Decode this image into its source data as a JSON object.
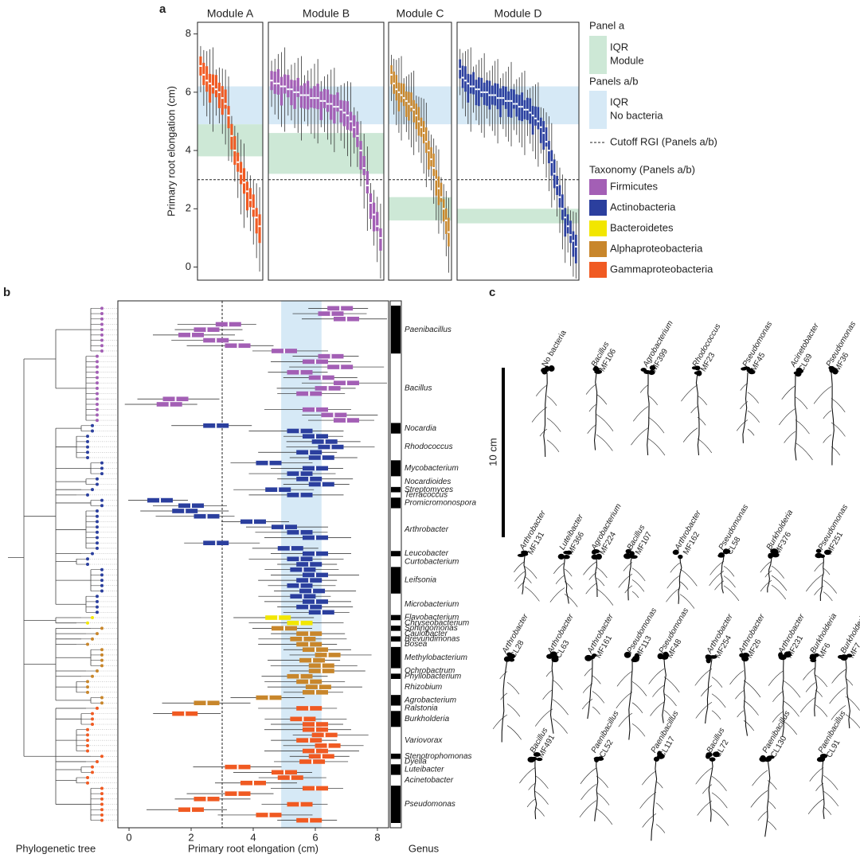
{
  "panel_a": {
    "label": "a",
    "y_label": "Primary root elongation (cm)",
    "ylim": [
      -0.45,
      8.4
    ],
    "yticks": [
      0,
      2,
      4,
      6,
      8
    ],
    "no_bacteria_iqr": [
      4.9,
      6.2
    ],
    "cutoff": 3.0,
    "modules": [
      {
        "name": "Module A",
        "color": "#f05a22",
        "iqr": [
          3.8,
          4.9
        ],
        "values": [
          6.9,
          6.6,
          6.4,
          6.3,
          6.2,
          6.1,
          6.0,
          5.8,
          5.6,
          5.2,
          4.5,
          4.0,
          3.6,
          3.2,
          2.9,
          2.6,
          2.3,
          2.0,
          1.7,
          1.4
        ]
      },
      {
        "name": "Module B",
        "color": "#a35fb5",
        "iqr": [
          3.2,
          4.6
        ],
        "values": [
          6.4,
          6.3,
          6.3,
          6.2,
          6.2,
          6.1,
          6.1,
          6.0,
          6.0,
          5.9,
          5.9,
          5.9,
          5.8,
          5.8,
          5.8,
          5.7,
          5.7,
          5.6,
          5.6,
          5.5,
          5.5,
          5.4,
          5.3,
          5.2,
          5.0,
          4.8,
          4.5,
          4.0,
          3.4,
          2.8,
          2.2,
          1.8,
          1.4,
          1.0
        ]
      },
      {
        "name": "Module C",
        "color": "#c8862b",
        "iqr": [
          1.6,
          2.4
        ],
        "values": [
          6.6,
          6.3,
          6.1,
          6.0,
          5.9,
          5.8,
          5.7,
          5.6,
          5.5,
          5.4,
          5.2,
          5.0,
          4.8,
          4.6,
          4.3,
          4.0,
          3.7,
          3.4,
          3.0,
          2.7,
          2.4,
          2.0,
          1.6,
          1.2
        ]
      },
      {
        "name": "Module D",
        "color": "#2b3f9e",
        "iqr": [
          1.5,
          2.0
        ],
        "values": [
          6.8,
          6.5,
          6.4,
          6.3,
          6.2,
          6.2,
          6.1,
          6.1,
          6.0,
          6.0,
          6.0,
          5.9,
          5.9,
          5.9,
          5.8,
          5.8,
          5.8,
          5.7,
          5.7,
          5.7,
          5.6,
          5.6,
          5.5,
          5.5,
          5.4,
          5.4,
          5.3,
          5.2,
          5.1,
          5.0,
          4.8,
          4.6,
          4.3,
          4.0,
          3.6,
          3.2,
          2.8,
          2.4,
          2.0,
          1.7,
          1.4,
          1.1,
          0.9,
          0.7
        ]
      }
    ],
    "legend": {
      "panel_a_title": "Panel a",
      "module_iqr": [
        "IQR",
        "Module"
      ],
      "module_color": "#cde8d6",
      "panels_ab_title": "Panels a/b",
      "no_bacteria_iqr": [
        "IQR",
        "No bacteria"
      ],
      "no_bacteria_color": "#d6e9f6",
      "cutoff": "Cutoff RGI (Panels a/b)",
      "taxonomy_title": "Taxonomy (Panels a/b)",
      "taxonomy": [
        {
          "name": "Firmicutes",
          "color": "#a35fb5"
        },
        {
          "name": "Actinobacteria",
          "color": "#2b3f9e"
        },
        {
          "name": "Bacteroidetes",
          "color": "#f2e600"
        },
        {
          "name": "Alphaproteobacteria",
          "color": "#c8862b"
        },
        {
          "name": "Gammaproteobacteria",
          "color": "#f05a22"
        }
      ]
    }
  },
  "panel_b": {
    "label": "b",
    "tree_label": "Phylogenetic tree",
    "x_label": "Primary root elongation (cm)",
    "genus_label": "Genus",
    "xlim": [
      -0.36,
      8.36
    ],
    "xticks": [
      0,
      2,
      4,
      6,
      8
    ],
    "no_bacteria_iqr": [
      4.9,
      6.2
    ],
    "cutoff": 3.0,
    "genera": [
      {
        "name": "Paenibacillus",
        "color": "#a35fb5",
        "values": [
          6.8,
          6.5,
          7.0,
          3.2,
          2.5,
          2.0,
          2.8,
          3.5,
          5.0
        ]
      },
      {
        "name": "Bacillus",
        "color": "#a35fb5",
        "values": [
          6.5,
          6.0,
          6.8,
          5.5,
          6.2,
          7.0,
          6.4,
          5.8,
          1.5,
          1.3,
          6.0,
          6.6,
          7.0
        ]
      },
      {
        "name": "Nocardia",
        "color": "#2b3f9e",
        "values": [
          2.8,
          5.5
        ]
      },
      {
        "name": "Rhodococcus",
        "color": "#2b3f9e",
        "values": [
          6.0,
          6.3,
          6.5,
          5.8,
          6.2
        ]
      },
      {
        "name": "Mycobacterium",
        "color": "#2b3f9e",
        "values": [
          4.5,
          6.0,
          5.5
        ]
      },
      {
        "name": "Nocardioides",
        "color": "#2b3f9e",
        "values": [
          5.8,
          6.2
        ]
      },
      {
        "name": "Streptomyces",
        "color": "#2b3f9e",
        "values": [
          4.8
        ]
      },
      {
        "name": "Terracoccus",
        "color": "#2b3f9e",
        "values": [
          5.5
        ]
      },
      {
        "name": "Promicromonospora",
        "color": "#2b3f9e",
        "values": [
          1.0,
          2.0
        ]
      },
      {
        "name": "Arthrobacter",
        "color": "#2b3f9e",
        "values": [
          1.8,
          2.5,
          4.0,
          5.0,
          5.5,
          6.0,
          2.8,
          5.2
        ]
      },
      {
        "name": "Leucobacter",
        "color": "#2b3f9e",
        "values": [
          6.0
        ]
      },
      {
        "name": "Curtobacterium",
        "color": "#2b3f9e",
        "values": [
          5.5,
          5.8
        ]
      },
      {
        "name": "Leifsonia",
        "color": "#2b3f9e",
        "values": [
          5.6,
          6.0,
          5.8,
          5.5,
          5.9
        ]
      },
      {
        "name": "Microbacterium",
        "color": "#2b3f9e",
        "values": [
          5.6,
          6.0,
          5.8,
          6.2
        ]
      },
      {
        "name": "Flavobacterium",
        "color": "#f2e600",
        "values": [
          4.8
        ]
      },
      {
        "name": "Chryseobacterium",
        "color": "#f2e600",
        "values": [
          5.5
        ]
      },
      {
        "name": "Sphingomonas",
        "color": "#c8862b",
        "values": [
          5.0
        ]
      },
      {
        "name": "Caulobacter",
        "color": "#c8862b",
        "values": [
          5.8
        ]
      },
      {
        "name": "Brevundimonas",
        "color": "#c8862b",
        "values": [
          5.6
        ]
      },
      {
        "name": "Bosea",
        "color": "#c8862b",
        "values": [
          5.8
        ]
      },
      {
        "name": "Methylobacterium",
        "color": "#c8862b",
        "values": [
          6.0,
          6.4,
          5.9,
          6.2
        ]
      },
      {
        "name": "Ochrobactrum",
        "color": "#c8862b",
        "values": [
          6.2
        ]
      },
      {
        "name": "Phyllobacterium",
        "color": "#c8862b",
        "values": [
          5.5
        ]
      },
      {
        "name": "Rhizobium",
        "color": "#c8862b",
        "values": [
          5.8,
          6.1,
          6.0
        ]
      },
      {
        "name": "Agrobacterium",
        "color": "#c8862b",
        "values": [
          4.5,
          2.5
        ]
      },
      {
        "name": "Ralstonia",
        "color": "#f05a22",
        "values": [
          5.8
        ]
      },
      {
        "name": "Burkholderia",
        "color": "#f05a22",
        "values": [
          1.8,
          5.6,
          6.0
        ]
      },
      {
        "name": "Variovorax",
        "color": "#f05a22",
        "values": [
          6.0,
          6.3,
          5.8,
          6.4,
          6.0
        ]
      },
      {
        "name": "Stenotrophomonas",
        "color": "#f05a22",
        "values": [
          6.2
        ]
      },
      {
        "name": "Dyella",
        "color": "#f05a22",
        "values": [
          5.9
        ]
      },
      {
        "name": "Luteibacter",
        "color": "#f05a22",
        "values": [
          3.5,
          5.0
        ]
      },
      {
        "name": "Acinetobacter",
        "color": "#f05a22",
        "values": [
          5.2,
          4.0
        ]
      },
      {
        "name": "Pseudomonas",
        "color": "#f05a22",
        "values": [
          6.0,
          3.5,
          2.5,
          5.5,
          2.0,
          4.5,
          5.8
        ]
      }
    ]
  },
  "panel_c": {
    "label": "c",
    "scale_label": "10 cm",
    "rows": [
      [
        {
          "name": "No bacteria"
        },
        {
          "genus": "Bacillus",
          "strain": "MF106"
        },
        {
          "genus": "Agrobacterium",
          "strain": "MF399"
        },
        {
          "genus": "Rhodococcus",
          "strain": "MF23"
        },
        {
          "genus": "Pseudomonas",
          "strain": "MF45"
        },
        {
          "genus": "Acinetobacter",
          "strain": "CL69"
        },
        {
          "genus": "Pseudomonas",
          "strain": "MF36"
        }
      ],
      [
        {
          "genus": "Arthrobacter",
          "strain": "MF131"
        },
        {
          "genus": "Luteibacter",
          "strain": "MF366"
        },
        {
          "genus": "Agrobacterium",
          "strain": "MF224"
        },
        {
          "genus": "Bacillus",
          "strain": "MF107"
        },
        {
          "genus": "Arthrobacter",
          "strain": "MF162"
        },
        {
          "genus": "Pseudomonas",
          "strain": "CL58"
        },
        {
          "genus": "Burkholderia",
          "strain": "MF376"
        },
        {
          "genus": "Pseudomonas",
          "strain": "MF251"
        }
      ],
      [
        {
          "genus": "Arthrobacter",
          "strain": "CL28"
        },
        {
          "genus": "Arthrobacter",
          "strain": "CL63"
        },
        {
          "genus": "Arthrobacter",
          "strain": "MF161"
        },
        {
          "genus": "Pseudomonas",
          "strain": "MF113"
        },
        {
          "genus": "Pseudomonas",
          "strain": "MF48"
        },
        {
          "genus": "Arthrobacter",
          "strain": "MF254"
        },
        {
          "genus": "Arthrobacter",
          "strain": "MF26"
        },
        {
          "genus": "Arthrobacter",
          "strain": "MF231"
        },
        {
          "genus": "Burkholderia",
          "strain": "MF6"
        },
        {
          "genus": "Burkholderia",
          "strain": "MF7"
        }
      ],
      [
        {
          "genus": "Bacillus",
          "strain": "MF491"
        },
        {
          "genus": "Paenibacillus",
          "strain": "CL52"
        },
        {
          "genus": "Paenibacillus",
          "strain": "CL117"
        },
        {
          "genus": "Bacillus",
          "strain": "CL72"
        },
        {
          "genus": "Paenibacillus",
          "strain": "CL130"
        },
        {
          "genus": "Paenibacillus",
          "strain": "CL91"
        }
      ]
    ]
  }
}
